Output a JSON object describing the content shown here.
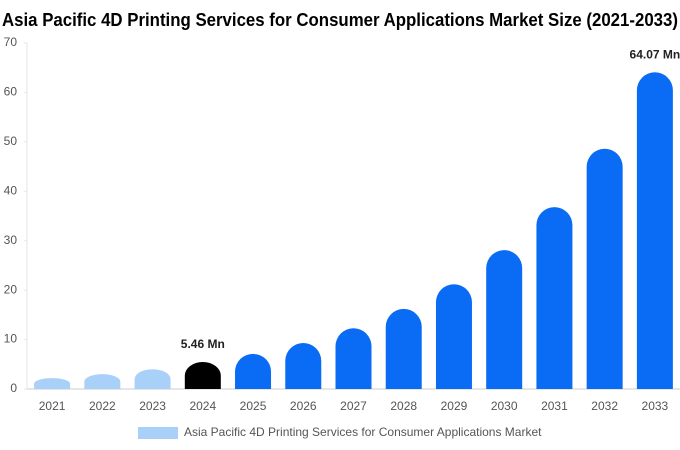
{
  "chart_data": {
    "type": "bar",
    "title": "Asia Pacific 4D Printing Services for Consumer Applications Market Size (2021-2033)",
    "categories": [
      "2021",
      "2022",
      "2023",
      "2024",
      "2025",
      "2026",
      "2027",
      "2028",
      "2029",
      "2030",
      "2031",
      "2032",
      "2033"
    ],
    "series": [
      {
        "name": "Asia Pacific 4D Printing Services for Consumer Applications Market",
        "color": "#a8d0f8",
        "colors": [
          "#a8d0f8",
          "#a8d0f8",
          "#a8d0f8",
          "#000000",
          "#0a6cf5",
          "#0a6cf5",
          "#0a6cf5",
          "#0a6cf5",
          "#0a6cf5",
          "#0a6cf5",
          "#0a6cf5",
          "#0a6cf5",
          "#0a6cf5"
        ],
        "values": [
          2.2,
          3.0,
          4.0,
          5.46,
          7.1,
          9.3,
          12.3,
          16.2,
          21.2,
          28.1,
          36.8,
          48.6,
          64.07
        ],
        "value_labels": [
          null,
          null,
          null,
          "5.46 Mn",
          null,
          null,
          null,
          null,
          null,
          null,
          null,
          null,
          "64.07 Mn"
        ]
      }
    ],
    "ylim": [
      0,
      70
    ],
    "yticks": [
      0,
      10,
      20,
      30,
      40,
      50,
      60,
      70
    ],
    "grid": false,
    "legend": "bottom"
  }
}
